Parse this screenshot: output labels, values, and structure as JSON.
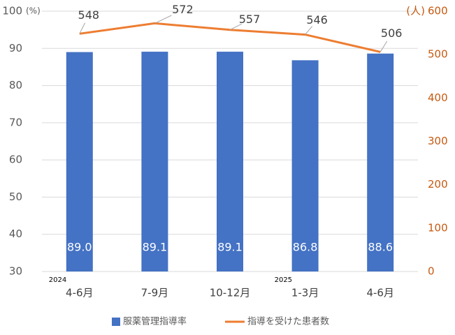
{
  "chart_data": {
    "type": "bar_line",
    "categories": [
      "4-6月",
      "7-9月",
      "10-12月",
      "1-3月",
      "4-6月"
    ],
    "year_labels": [
      "2024",
      null,
      null,
      "2025",
      null
    ],
    "y_unit": "(%)",
    "y2_unit": "(人)",
    "series": [
      {
        "name": "服薬管理指導率",
        "type": "bar",
        "color": "#4472C4",
        "values": [
          89.0,
          89.1,
          89.1,
          86.8,
          88.6
        ],
        "value_labels": [
          "89.0",
          "89.1",
          "89.1",
          "86.8",
          "88.6"
        ]
      },
      {
        "name": "指導を受けた患者数",
        "type": "line",
        "axis": "y2",
        "color": "#ED7D31",
        "values": [
          548,
          572,
          557,
          546,
          506
        ]
      }
    ],
    "ylim": [
      30,
      100
    ],
    "yticks": [
      30,
      40,
      50,
      60,
      70,
      80,
      90,
      100
    ],
    "y2lim": [
      0,
      600
    ],
    "y2ticks": [
      0,
      100,
      200,
      300,
      400,
      500,
      600
    ],
    "grid": true,
    "legend": "bottom"
  }
}
